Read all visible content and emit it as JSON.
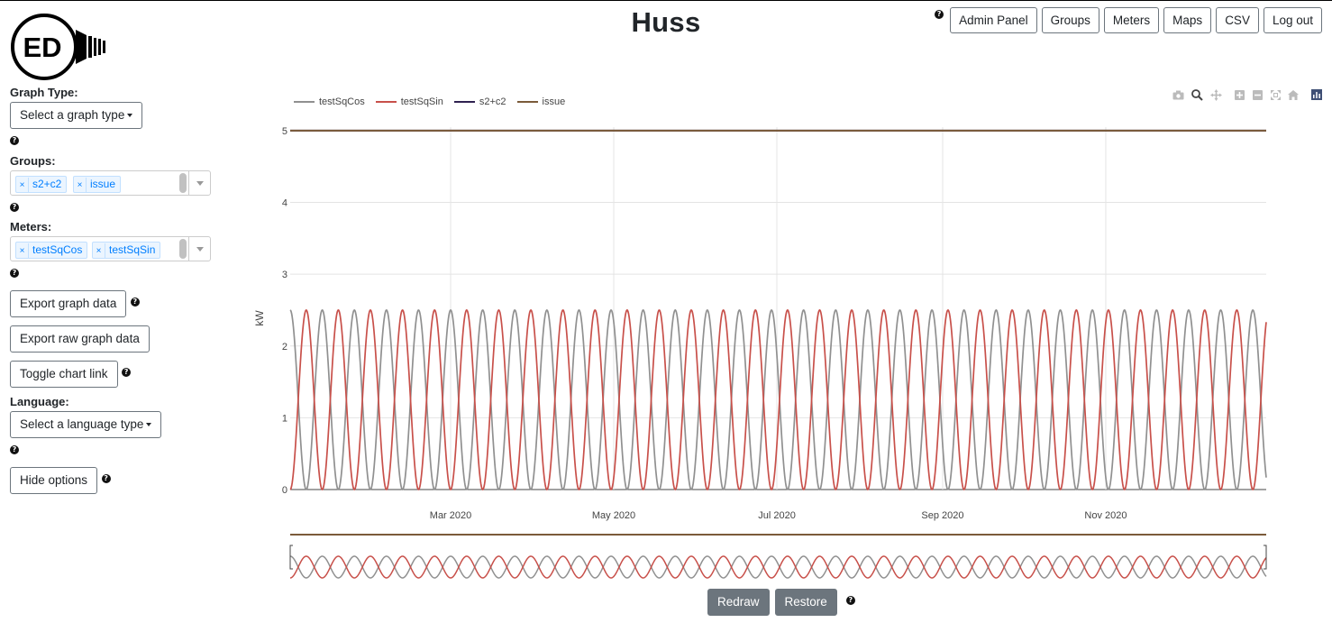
{
  "title": "Huss",
  "nav": {
    "admin": "Admin Panel",
    "groups": "Groups",
    "meters": "Meters",
    "maps": "Maps",
    "csv": "CSV",
    "logout": "Log out"
  },
  "logo": {
    "text": "ED"
  },
  "sidebar": {
    "graph_type_label": "Graph Type:",
    "graph_type_select": "Select a graph type",
    "groups_label": "Groups:",
    "groups_selected": [
      "s2+c2",
      "issue"
    ],
    "meters_label": "Meters:",
    "meters_selected": [
      "testSqCos",
      "testSqSin"
    ],
    "export_graph": "Export graph data",
    "export_raw": "Export raw graph data",
    "toggle_link": "Toggle chart link",
    "language_label": "Language:",
    "language_select": "Select a language type",
    "hide_options": "Hide options"
  },
  "controls": {
    "redraw": "Redraw",
    "restore": "Restore"
  },
  "colors": {
    "testSqCos": "#909090",
    "testSqSin": "#c8504a",
    "s2c2": "#2f2150",
    "issue": "#7b5b3a",
    "chip_text": "#007eff"
  },
  "chart_data": {
    "type": "line",
    "x_range": [
      "2020-01-01",
      "2020-12-31"
    ],
    "x_ticks": [
      "Mar 2020",
      "May 2020",
      "Jul 2020",
      "Sep 2020",
      "Nov 2020"
    ],
    "y_range": [
      0,
      5.3
    ],
    "y_ticks": [
      "0",
      "1",
      "2",
      "3",
      "4",
      "5"
    ],
    "ylabel": "kW",
    "grid": true,
    "legend_position": "top-left",
    "range_slider": true,
    "series": [
      {
        "name": "testSqCos",
        "period_days": 12,
        "amplitude": 2.5,
        "phase": "cos"
      },
      {
        "name": "testSqSin",
        "period_days": 12,
        "amplitude": 2.5,
        "phase": "sin"
      },
      {
        "name": "s2+c2",
        "constant": 5
      },
      {
        "name": "issue",
        "constant": 5
      }
    ]
  }
}
